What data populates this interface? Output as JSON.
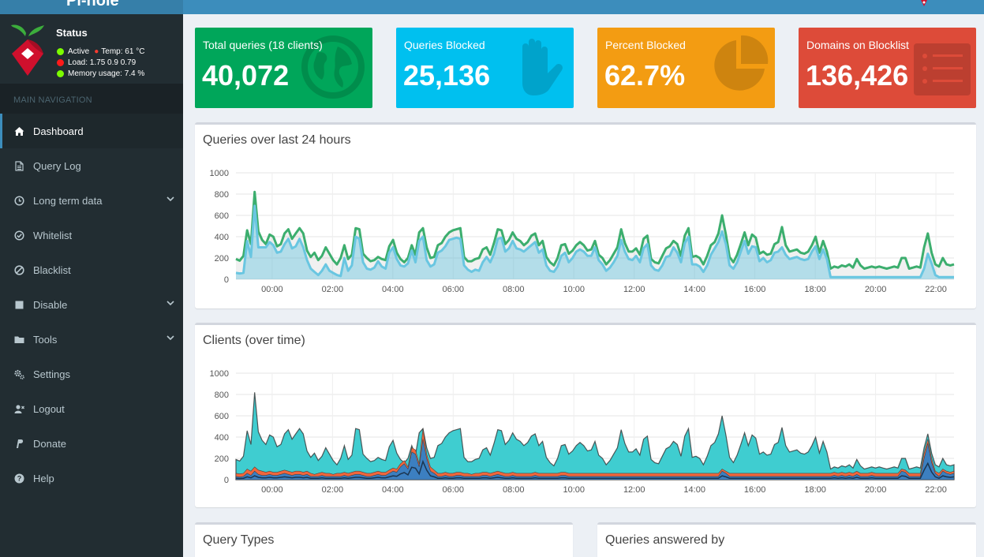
{
  "brand": {
    "title": "Pi-hole"
  },
  "status": {
    "title": "Status",
    "active": "Active",
    "temp": "Temp: 61 °C",
    "load": "Load:  1.75  0.9  0.79",
    "memory": "Memory usage:  7.4 %"
  },
  "nav": {
    "header": "MAIN NAVIGATION",
    "items": [
      {
        "label": "Dashboard",
        "icon": "home-icon",
        "active": true
      },
      {
        "label": "Query Log",
        "icon": "file-icon"
      },
      {
        "label": "Long term data",
        "icon": "clock-icon",
        "caret": true
      },
      {
        "label": "Whitelist",
        "icon": "check-circle-icon"
      },
      {
        "label": "Blacklist",
        "icon": "ban-icon"
      },
      {
        "label": "Disable",
        "icon": "stop-icon",
        "caret": true
      },
      {
        "label": "Tools",
        "icon": "folder-icon",
        "caret": true
      },
      {
        "label": "Settings",
        "icon": "gears-icon"
      },
      {
        "label": "Logout",
        "icon": "user-times-icon"
      },
      {
        "label": "Donate",
        "icon": "paypal-icon"
      },
      {
        "label": "Help",
        "icon": "question-circle-icon"
      }
    ]
  },
  "stats": [
    {
      "title": "Total queries (18 clients)",
      "value": "40,072",
      "color": "#00a65a",
      "icon": "globe-icon"
    },
    {
      "title": "Queries Blocked",
      "value": "25,136",
      "color": "#00c0ef",
      "icon": "hand-icon"
    },
    {
      "title": "Percent Blocked",
      "value": "62.7%",
      "color": "#f39c12",
      "icon": "pie-chart-icon"
    },
    {
      "title": "Domains on Blocklist",
      "value": "136,426",
      "color": "#dd4b39",
      "icon": "list-icon"
    }
  ],
  "boxes": {
    "queries_title": "Queries over last 24 hours",
    "clients_title": "Clients (over time)",
    "query_types_title": "Query Types",
    "answered_by_title": "Queries answered by"
  },
  "chart_data": [
    {
      "type": "area",
      "title": "Queries over last 24 hours",
      "x_ticks": [
        "00:00",
        "02:00",
        "04:00",
        "06:00",
        "08:00",
        "10:00",
        "12:00",
        "14:00",
        "16:00",
        "18:00",
        "20:00",
        "22:00"
      ],
      "y_ticks": [
        "0",
        "200",
        "400",
        "600",
        "800",
        "1000"
      ],
      "ylim": [
        0,
        1000
      ],
      "x_start_hour": -1.2,
      "x_end_hour": 22.6,
      "series": [
        {
          "color": "#3cae6e",
          "values": [
            190,
            175,
            220,
            460,
            330,
            820,
            450,
            370,
            330,
            420,
            400,
            310,
            330,
            430,
            470,
            380,
            430,
            480,
            430,
            270,
            210,
            250,
            180,
            220,
            300,
            240,
            180,
            140,
            200,
            320,
            190,
            230,
            480,
            470,
            240,
            200,
            170,
            180,
            210,
            190,
            180,
            310,
            370,
            250,
            190,
            160,
            200,
            320,
            230,
            440,
            480,
            300,
            200,
            210,
            320,
            340,
            400,
            440,
            460,
            470,
            480,
            210,
            170,
            170,
            190,
            200,
            280,
            300,
            230,
            340,
            470,
            460,
            330,
            370,
            440,
            380,
            360,
            320,
            350,
            410,
            430,
            320,
            360,
            210,
            160,
            130,
            200,
            320,
            330,
            240,
            270,
            320,
            350,
            320,
            270,
            280,
            360,
            230,
            200,
            140,
            180,
            240,
            300,
            470,
            340,
            260,
            260,
            290,
            230,
            380,
            410,
            190,
            160,
            150,
            220,
            290,
            310,
            360,
            330,
            220,
            410,
            480,
            210,
            220,
            200,
            140,
            220,
            320,
            350,
            430,
            600,
            420,
            210,
            160,
            230,
            330,
            440,
            320,
            420,
            390,
            240,
            260,
            230,
            240,
            330,
            350,
            490,
            320,
            260,
            270,
            280,
            250,
            240,
            260,
            320,
            400,
            250,
            360,
            260,
            100,
            120,
            110,
            130,
            120,
            140,
            110,
            190,
            130,
            100,
            110,
            120,
            110,
            120,
            110,
            100,
            110,
            120,
            110,
            200,
            200,
            100,
            110,
            120,
            110,
            300,
            430,
            250,
            140,
            120,
            200,
            140,
            130,
            140
          ]
        },
        {
          "color": "#69c6e1",
          "values": [
            60,
            55,
            60,
            360,
            210,
            690,
            300,
            300,
            300,
            350,
            320,
            250,
            260,
            330,
            380,
            290,
            310,
            380,
            300,
            180,
            100,
            70,
            40,
            80,
            140,
            80,
            60,
            40,
            30,
            200,
            80,
            130,
            400,
            380,
            160,
            100,
            90,
            110,
            170,
            120,
            100,
            250,
            300,
            190,
            130,
            120,
            150,
            270,
            160,
            360,
            400,
            180,
            120,
            140,
            250,
            270,
            310,
            370,
            380,
            390,
            380,
            130,
            90,
            70,
            90,
            80,
            160,
            210,
            160,
            240,
            380,
            390,
            260,
            290,
            360,
            290,
            280,
            260,
            290,
            320,
            350,
            250,
            280,
            130,
            80,
            70,
            120,
            220,
            250,
            160,
            200,
            260,
            280,
            260,
            220,
            220,
            300,
            180,
            140,
            80,
            110,
            160,
            220,
            370,
            260,
            190,
            180,
            220,
            160,
            290,
            330,
            130,
            90,
            80,
            130,
            210,
            220,
            300,
            250,
            160,
            340,
            400,
            140,
            140,
            120,
            70,
            130,
            230,
            290,
            350,
            450,
            330,
            130,
            100,
            160,
            260,
            360,
            240,
            310,
            300,
            170,
            200,
            160,
            180,
            250,
            260,
            300,
            230,
            190,
            200,
            210,
            190,
            180,
            190,
            260,
            310,
            190,
            280,
            190,
            20,
            20,
            20,
            20,
            20,
            20,
            20,
            20,
            20,
            20,
            20,
            20,
            20,
            20,
            20,
            20,
            20,
            20,
            20,
            20,
            20,
            20,
            20,
            20,
            20,
            100,
            240,
            150,
            40,
            20,
            20,
            20,
            20,
            20
          ]
        }
      ]
    },
    {
      "type": "area",
      "title": "Clients (over time)",
      "x_ticks": [
        "00:00",
        "02:00",
        "04:00",
        "06:00",
        "08:00",
        "10:00",
        "12:00",
        "14:00",
        "16:00",
        "18:00",
        "20:00",
        "22:00"
      ],
      "y_ticks": [
        "0",
        "200",
        "400",
        "600",
        "800",
        "1000"
      ],
      "ylim": [
        0,
        1000
      ],
      "x_start_hour": -1.2,
      "x_end_hour": 22.6,
      "series": [
        {
          "color": "#3fcdd0",
          "values": [
            190,
            175,
            220,
            460,
            330,
            820,
            450,
            370,
            330,
            420,
            400,
            310,
            330,
            430,
            470,
            380,
            430,
            480,
            430,
            270,
            210,
            250,
            180,
            220,
            300,
            240,
            180,
            140,
            200,
            320,
            190,
            230,
            480,
            470,
            240,
            200,
            170,
            180,
            210,
            190,
            180,
            310,
            370,
            250,
            190,
            160,
            200,
            320,
            230,
            440,
            480,
            300,
            200,
            210,
            320,
            340,
            400,
            440,
            460,
            470,
            480,
            210,
            170,
            170,
            190,
            200,
            280,
            300,
            230,
            340,
            470,
            460,
            330,
            370,
            440,
            380,
            360,
            320,
            350,
            410,
            430,
            320,
            360,
            210,
            160,
            130,
            200,
            320,
            330,
            240,
            270,
            320,
            350,
            320,
            270,
            280,
            360,
            230,
            200,
            140,
            180,
            240,
            300,
            470,
            340,
            260,
            260,
            290,
            230,
            380,
            410,
            190,
            160,
            150,
            220,
            290,
            310,
            360,
            330,
            220,
            410,
            480,
            210,
            220,
            200,
            140,
            220,
            320,
            350,
            430,
            600,
            420,
            210,
            160,
            230,
            330,
            440,
            320,
            420,
            390,
            240,
            260,
            230,
            240,
            330,
            350,
            490,
            320,
            260,
            270,
            280,
            250,
            240,
            260,
            320,
            400,
            250,
            360,
            260,
            100,
            120,
            110,
            130,
            120,
            140,
            110,
            190,
            130,
            100,
            110,
            120,
            110,
            120,
            110,
            100,
            110,
            120,
            110,
            200,
            200,
            100,
            110,
            120,
            110,
            300,
            430,
            250,
            140,
            120,
            200,
            140,
            130,
            140
          ]
        },
        {
          "color": "#f0663c",
          "values": [
            60,
            55,
            60,
            100,
            80,
            120,
            90,
            80,
            70,
            80,
            70,
            70,
            80,
            90,
            80,
            70,
            80,
            80,
            70,
            80,
            60,
            50,
            60,
            70,
            60,
            60,
            50,
            60,
            60,
            70,
            60,
            70,
            80,
            80,
            70,
            60,
            60,
            70,
            80,
            70,
            70,
            90,
            110,
            100,
            150,
            180,
            120,
            300,
            280,
            150,
            480,
            240,
            120,
            90,
            60,
            60,
            70,
            60,
            60,
            70,
            70,
            60,
            60,
            50,
            60,
            60,
            70,
            70,
            60,
            70,
            80,
            70,
            60,
            60,
            70,
            60,
            60,
            60,
            60,
            60,
            70,
            60,
            60,
            60,
            60,
            60,
            60,
            70,
            70,
            60,
            60,
            60,
            60,
            60,
            60,
            60,
            60,
            60,
            60,
            60,
            60,
            60,
            60,
            60,
            60,
            60,
            60,
            60,
            60,
            60,
            60,
            60,
            60,
            60,
            60,
            60,
            60,
            60,
            60,
            60,
            60,
            60,
            60,
            60,
            60,
            60,
            60,
            60,
            60,
            60,
            100,
            80,
            60,
            60,
            60,
            60,
            60,
            60,
            60,
            60,
            60,
            60,
            60,
            60,
            60,
            60,
            60,
            60,
            60,
            60,
            60,
            60,
            60,
            60,
            60,
            60,
            60,
            60,
            60,
            60,
            70,
            60,
            70,
            60,
            70,
            60,
            80,
            60,
            60,
            60,
            70,
            60,
            60,
            60,
            60,
            60,
            60,
            60,
            100,
            90,
            60,
            60,
            60,
            60,
            250,
            380,
            200,
            80,
            60,
            100,
            80,
            70,
            80
          ]
        },
        {
          "color": "#3c7fc0",
          "values": [
            30,
            25,
            30,
            60,
            40,
            80,
            50,
            40,
            40,
            50,
            40,
            40,
            50,
            60,
            50,
            40,
            50,
            50,
            40,
            50,
            30,
            30,
            30,
            40,
            30,
            30,
            30,
            30,
            30,
            40,
            30,
            40,
            50,
            50,
            40,
            30,
            30,
            40,
            50,
            40,
            40,
            60,
            80,
            70,
            120,
            150,
            100,
            260,
            240,
            120,
            380,
            200,
            80,
            60,
            30,
            30,
            40,
            30,
            30,
            40,
            40,
            30,
            30,
            30,
            30,
            30,
            40,
            40,
            30,
            40,
            50,
            40,
            30,
            30,
            40,
            30,
            30,
            30,
            30,
            30,
            40,
            30,
            30,
            30,
            30,
            30,
            30,
            40,
            40,
            30,
            30,
            30,
            30,
            30,
            30,
            30,
            30,
            30,
            30,
            30,
            30,
            30,
            30,
            30,
            30,
            30,
            30,
            30,
            30,
            30,
            30,
            30,
            30,
            30,
            30,
            30,
            30,
            30,
            30,
            30,
            30,
            30,
            30,
            30,
            30,
            30,
            30,
            30,
            30,
            30,
            80,
            60,
            30,
            30,
            30,
            30,
            30,
            30,
            30,
            30,
            30,
            30,
            30,
            30,
            30,
            30,
            30,
            30,
            30,
            30,
            30,
            30,
            30,
            30,
            30,
            30,
            30,
            30,
            30,
            30,
            40,
            30,
            40,
            30,
            40,
            30,
            50,
            30,
            30,
            30,
            40,
            30,
            30,
            30,
            30,
            30,
            30,
            30,
            80,
            70,
            30,
            30,
            30,
            30,
            200,
            340,
            160,
            60,
            30,
            80,
            60,
            50,
            60
          ]
        }
      ]
    }
  ]
}
